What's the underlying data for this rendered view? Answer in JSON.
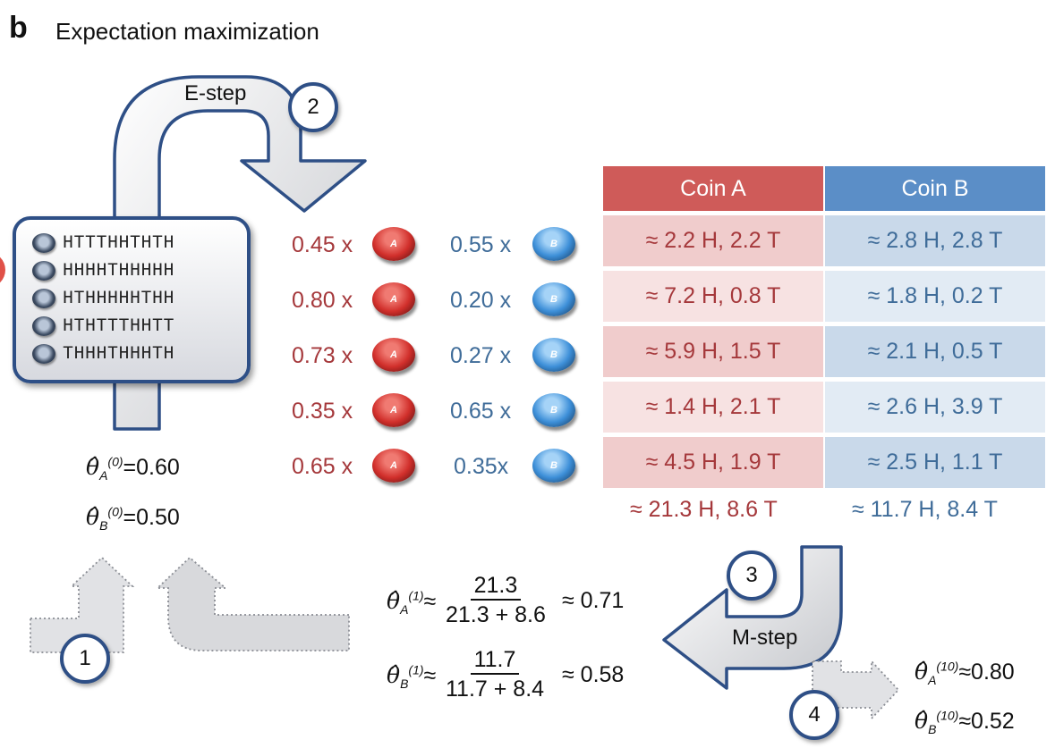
{
  "panel": {
    "letter": "b",
    "title": "Expectation maximization"
  },
  "steps": {
    "e_step_label": "E-step",
    "m_step_label": "M-step",
    "numbers": [
      "1",
      "2",
      "3",
      "4"
    ]
  },
  "sequences": [
    "HTTTHHTHTH",
    "HHHHTHHHHH",
    "HTHHHHHTHH",
    "HTHTTTHHTT",
    "THHHTHHHTH"
  ],
  "weights": [
    {
      "a": "0.45 x",
      "b": "0.55 x"
    },
    {
      "a": "0.80 x",
      "b": "0.20 x"
    },
    {
      "a": "0.73 x",
      "b": "0.27 x"
    },
    {
      "a": "0.35 x",
      "b": "0.65 x"
    },
    {
      "a": "0.65 x",
      "b": "0.35x"
    }
  ],
  "coins": {
    "a_letter": "A",
    "b_letter": "B"
  },
  "table": {
    "headers": [
      "Coin A",
      "Coin B"
    ],
    "rows": [
      [
        "≈ 2.2 H, 2.2 T",
        "≈ 2.8 H, 2.8 T"
      ],
      [
        "≈ 7.2 H, 0.8 T",
        "≈ 1.8 H, 0.2 T"
      ],
      [
        "≈ 5.9 H, 1.5 T",
        "≈ 2.1 H, 0.5 T"
      ],
      [
        "≈ 1.4 H, 2.1 T",
        "≈ 2.6 H, 3.9 T"
      ],
      [
        "≈ 4.5 H, 1.9 T",
        "≈ 2.5 H, 1.1 T"
      ]
    ],
    "totals": [
      "≈ 21.3 H, 8.6 T",
      "≈ 11.7 H, 8.4 T"
    ]
  },
  "colors": {
    "coin_a_header": "#cf5b59",
    "coin_b_header": "#5b8ec7",
    "coin_a_text": "#a5383b",
    "coin_b_text": "#3f6c99",
    "circle_border": "#2e4f86"
  },
  "initial": {
    "theta_a": {
      "sub": "A",
      "sup": "(0)",
      "rel": "=",
      "value": "0.60"
    },
    "theta_b": {
      "sub": "B",
      "sup": "(0)",
      "rel": "=",
      "value": "0.50"
    }
  },
  "update": {
    "theta_a": {
      "sub": "A",
      "sup": "(1)",
      "rel": "≈",
      "numerator": "21.3",
      "denominator": "21.3 + 8.6",
      "result": "≈ 0.71"
    },
    "theta_b": {
      "sub": "B",
      "sup": "(1)",
      "rel": "≈",
      "numerator": "11.7",
      "denominator": "11.7 + 8.4",
      "result": "≈ 0.58"
    }
  },
  "final": {
    "theta_a": {
      "sub": "A",
      "sup": "(10)",
      "rel": "≈",
      "value": "0.80"
    },
    "theta_b": {
      "sub": "B",
      "sup": "(10)",
      "rel": "≈",
      "value": "0.52"
    }
  }
}
